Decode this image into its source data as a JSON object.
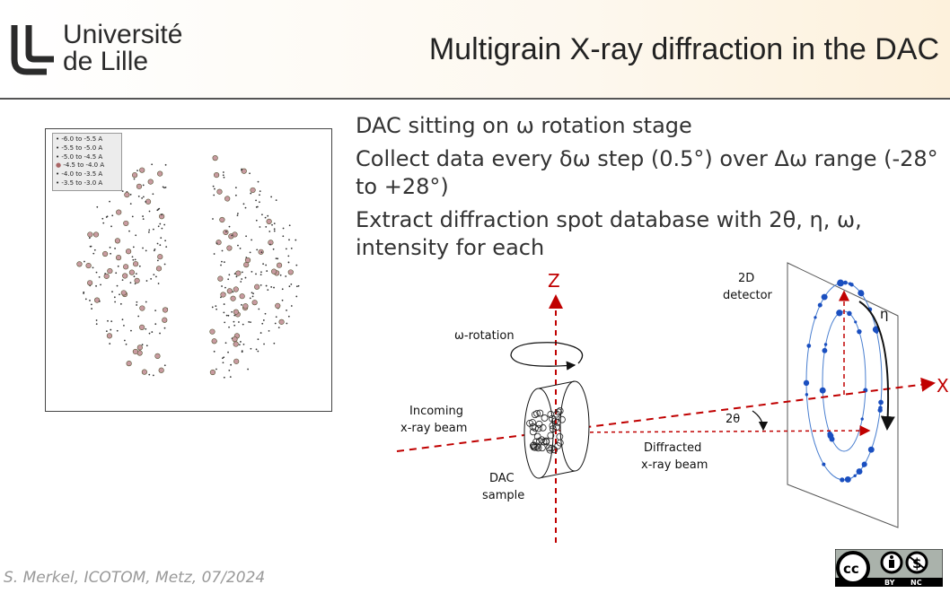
{
  "header": {
    "logo_line1": "Université",
    "logo_line2": "de Lille",
    "title": "Multigrain X-ray diffraction in the DAC"
  },
  "bullets": [
    "DAC sitting on ω rotation stage",
    "Collect data every δω step (0.5°) over Δω range (-28° to +28°)",
    "Extract diffraction spot database with 2θ, η, ω, intensity for each"
  ],
  "plot": {
    "legend": [
      "-6.0 to -5.5 A",
      "-5.5 to -5.0 A",
      "-5.0 to -4.5 A",
      "-4.5 to -4.0 A",
      "-4.0 to -3.5 A",
      "-3.5 to -3.0 A"
    ]
  },
  "diagram": {
    "z": "Z",
    "x": "X",
    "omega_rotation": "ω-rotation",
    "incoming_1": "Incoming",
    "incoming_2": "x-ray beam",
    "dac_1": "DAC",
    "dac_2": "sample",
    "diffracted_1": "Diffracted",
    "diffracted_2": "x-ray beam",
    "two_theta": "2θ",
    "detector_1": "2D",
    "detector_2": "detector",
    "eta": "η",
    "colors": {
      "axis": "#c00000",
      "spots": "#1a4fc0"
    }
  },
  "footer": {
    "credit": "S. Merkel, ICOTOM, Metz, 07/2024",
    "license": "CC BY NC",
    "by": "BY",
    "nc": "NC"
  }
}
